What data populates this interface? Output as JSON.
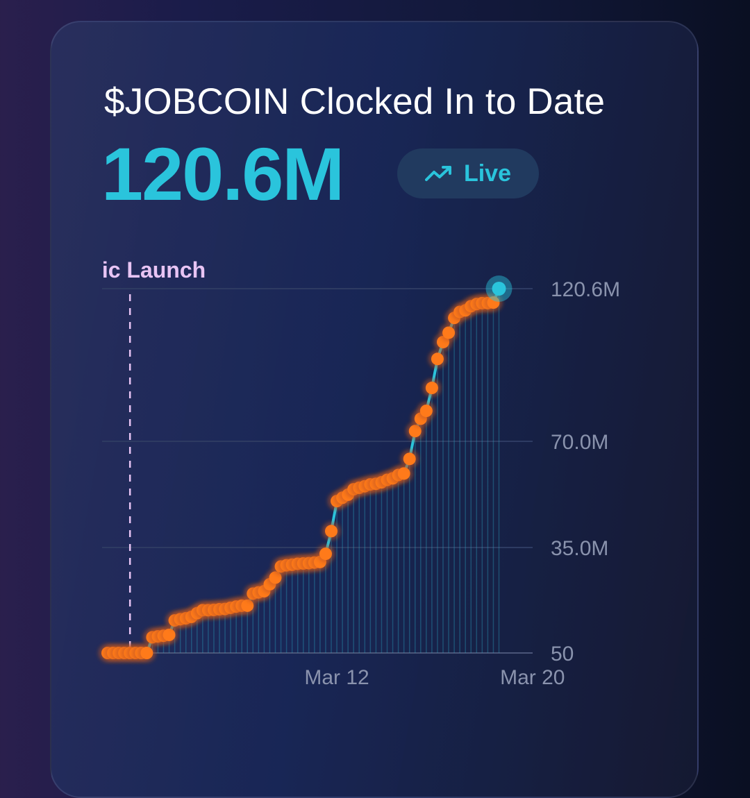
{
  "card": {
    "title": "$JOBCOIN Clocked In to Date",
    "value": "120.6M",
    "live_label": "Live",
    "live_icon": "trending-up-icon"
  },
  "colors": {
    "accent": "#2ac4dc",
    "point": "#ff7a1a",
    "annotation": "#e8c4f4",
    "axis_text": "#8a93ad"
  },
  "chart_data": {
    "type": "line",
    "title": "$JOBCOIN Clocked In to Date",
    "xlabel": "",
    "ylabel": "",
    "ylim": [
      50,
      120600000
    ],
    "y_ticks": [
      {
        "value": 50,
        "label": "50"
      },
      {
        "value": 35000000,
        "label": "35.0M"
      },
      {
        "value": 70000000,
        "label": "70.0M"
      },
      {
        "value": 120600000,
        "label": "120.6M"
      }
    ],
    "x_ticks": [
      {
        "index": 41,
        "label": "Mar 12"
      },
      {
        "index": 76,
        "label": "Mar 20"
      }
    ],
    "annotation": {
      "index": 4,
      "label": "Public Launch"
    },
    "grid": true,
    "series": [
      {
        "name": "$JOBCOIN Clocked In",
        "values": [
          0,
          0,
          0,
          0,
          0,
          0,
          0,
          0,
          5200000,
          5500000,
          5700000,
          6000000,
          10800000,
          11200000,
          11500000,
          12000000,
          13200000,
          14200000,
          14200000,
          14300000,
          14500000,
          14600000,
          15000000,
          15400000,
          15700000,
          15700000,
          19700000,
          20100000,
          20500000,
          22800000,
          25000000,
          28700000,
          29100000,
          29300000,
          29600000,
          29700000,
          29800000,
          30000000,
          30200000,
          32900000,
          40400000,
          50300000,
          51400000,
          52400000,
          54200000,
          54700000,
          55200000,
          55800000,
          56000000,
          56500000,
          57300000,
          57800000,
          58900000,
          59400000,
          64200000,
          73400000,
          77500000,
          80100000,
          87700000,
          97300000,
          102900000,
          106000000,
          110900000,
          112900000,
          113400000,
          114800000,
          115500000,
          115800000,
          115800000,
          116000000,
          120600000
        ]
      }
    ]
  }
}
